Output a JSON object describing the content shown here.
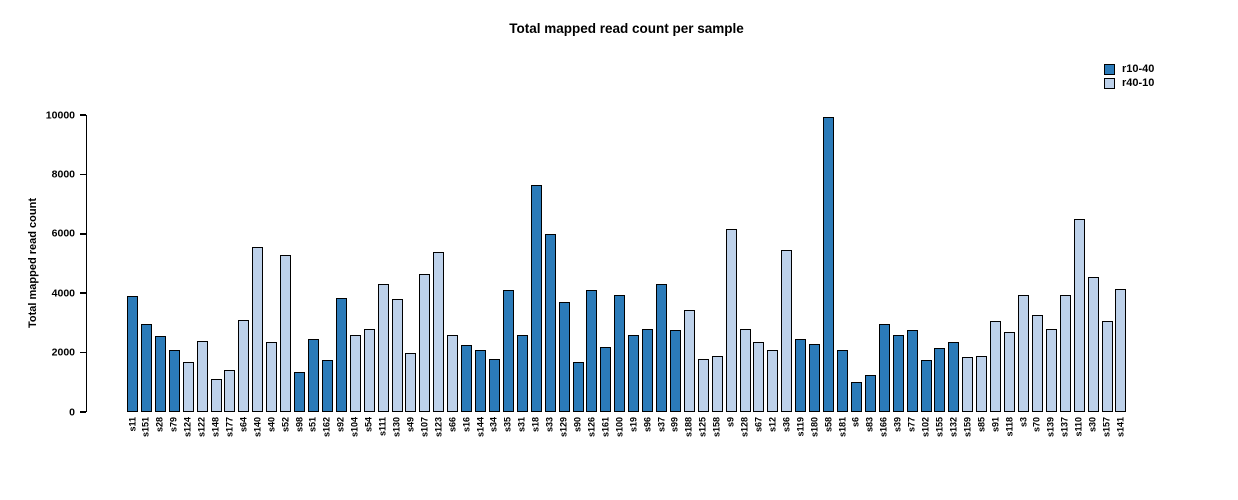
{
  "chart_data": {
    "type": "bar",
    "title": "Total mapped read count per sample",
    "xlabel": "",
    "ylabel": "Total mapped read count",
    "ylim": [
      0,
      10000
    ],
    "yticks": [
      0,
      2000,
      4000,
      6000,
      8000,
      10000
    ],
    "grid": false,
    "legend_position": "top-right",
    "legend": [
      {
        "label": "r10-40",
        "color": "#2b7bb9"
      },
      {
        "label": "r40-10",
        "color": "#bdd1ea"
      }
    ],
    "samples": [
      {
        "id": "s11",
        "value": 3900,
        "series": "r10-40"
      },
      {
        "id": "s151",
        "value": 2950,
        "series": "r10-40"
      },
      {
        "id": "s28",
        "value": 2550,
        "series": "r10-40"
      },
      {
        "id": "s79",
        "value": 2100,
        "series": "r10-40"
      },
      {
        "id": "s124",
        "value": 1700,
        "series": "r40-10"
      },
      {
        "id": "s122",
        "value": 2400,
        "series": "r40-10"
      },
      {
        "id": "s148",
        "value": 1100,
        "series": "r40-10"
      },
      {
        "id": "s177",
        "value": 1400,
        "series": "r40-10"
      },
      {
        "id": "s64",
        "value": 3100,
        "series": "r40-10"
      },
      {
        "id": "s140",
        "value": 5550,
        "series": "r40-10"
      },
      {
        "id": "s40",
        "value": 2350,
        "series": "r40-10"
      },
      {
        "id": "s52",
        "value": 5300,
        "series": "r40-10"
      },
      {
        "id": "s98",
        "value": 1350,
        "series": "r10-40"
      },
      {
        "id": "s51",
        "value": 2450,
        "series": "r10-40"
      },
      {
        "id": "s162",
        "value": 1750,
        "series": "r10-40"
      },
      {
        "id": "s92",
        "value": 3850,
        "series": "r10-40"
      },
      {
        "id": "s104",
        "value": 2600,
        "series": "r40-10"
      },
      {
        "id": "s54",
        "value": 2800,
        "series": "r40-10"
      },
      {
        "id": "s111",
        "value": 4300,
        "series": "r40-10"
      },
      {
        "id": "s130",
        "value": 3800,
        "series": "r40-10"
      },
      {
        "id": "s49",
        "value": 2000,
        "series": "r40-10"
      },
      {
        "id": "s107",
        "value": 4650,
        "series": "r40-10"
      },
      {
        "id": "s123",
        "value": 5400,
        "series": "r40-10"
      },
      {
        "id": "s66",
        "value": 2600,
        "series": "r40-10"
      },
      {
        "id": "s16",
        "value": 2250,
        "series": "r10-40"
      },
      {
        "id": "s144",
        "value": 2100,
        "series": "r10-40"
      },
      {
        "id": "s34",
        "value": 1800,
        "series": "r10-40"
      },
      {
        "id": "s35",
        "value": 4100,
        "series": "r10-40"
      },
      {
        "id": "s31",
        "value": 2600,
        "series": "r10-40"
      },
      {
        "id": "s18",
        "value": 7650,
        "series": "r10-40"
      },
      {
        "id": "s33",
        "value": 6000,
        "series": "r10-40"
      },
      {
        "id": "s129",
        "value": 3700,
        "series": "r10-40"
      },
      {
        "id": "s90",
        "value": 1700,
        "series": "r10-40"
      },
      {
        "id": "s126",
        "value": 4100,
        "series": "r10-40"
      },
      {
        "id": "s161",
        "value": 2200,
        "series": "r10-40"
      },
      {
        "id": "s100",
        "value": 3950,
        "series": "r10-40"
      },
      {
        "id": "s19",
        "value": 2600,
        "series": "r10-40"
      },
      {
        "id": "s96",
        "value": 2800,
        "series": "r10-40"
      },
      {
        "id": "s37",
        "value": 4300,
        "series": "r10-40"
      },
      {
        "id": "s99",
        "value": 2750,
        "series": "r10-40"
      },
      {
        "id": "s188",
        "value": 3450,
        "series": "r40-10"
      },
      {
        "id": "s125",
        "value": 1800,
        "series": "r40-10"
      },
      {
        "id": "s158",
        "value": 1900,
        "series": "r40-10"
      },
      {
        "id": "s9",
        "value": 6150,
        "series": "r40-10"
      },
      {
        "id": "s128",
        "value": 2800,
        "series": "r40-10"
      },
      {
        "id": "s67",
        "value": 2350,
        "series": "r40-10"
      },
      {
        "id": "s12",
        "value": 2100,
        "series": "r40-10"
      },
      {
        "id": "s36",
        "value": 5450,
        "series": "r40-10"
      },
      {
        "id": "s119",
        "value": 2450,
        "series": "r10-40"
      },
      {
        "id": "s180",
        "value": 2300,
        "series": "r10-40"
      },
      {
        "id": "s58",
        "value": 9950,
        "series": "r10-40"
      },
      {
        "id": "s181",
        "value": 2100,
        "series": "r10-40"
      },
      {
        "id": "s6",
        "value": 1000,
        "series": "r10-40"
      },
      {
        "id": "s83",
        "value": 1250,
        "series": "r10-40"
      },
      {
        "id": "s166",
        "value": 2950,
        "series": "r10-40"
      },
      {
        "id": "s39",
        "value": 2600,
        "series": "r10-40"
      },
      {
        "id": "s77",
        "value": 2750,
        "series": "r10-40"
      },
      {
        "id": "s102",
        "value": 1750,
        "series": "r10-40"
      },
      {
        "id": "s155",
        "value": 2150,
        "series": "r10-40"
      },
      {
        "id": "s132",
        "value": 2350,
        "series": "r10-40"
      },
      {
        "id": "s159",
        "value": 1850,
        "series": "r40-10"
      },
      {
        "id": "s85",
        "value": 1900,
        "series": "r40-10"
      },
      {
        "id": "s91",
        "value": 3050,
        "series": "r40-10"
      },
      {
        "id": "s118",
        "value": 2700,
        "series": "r40-10"
      },
      {
        "id": "s3",
        "value": 3950,
        "series": "r40-10"
      },
      {
        "id": "s70",
        "value": 3250,
        "series": "r40-10"
      },
      {
        "id": "s139",
        "value": 2800,
        "series": "r40-10"
      },
      {
        "id": "s137",
        "value": 3950,
        "series": "r40-10"
      },
      {
        "id": "s110",
        "value": 6500,
        "series": "r40-10"
      },
      {
        "id": "s30",
        "value": 4550,
        "series": "r40-10"
      },
      {
        "id": "s157",
        "value": 3050,
        "series": "r40-10"
      },
      {
        "id": "s141",
        "value": 4150,
        "series": "r40-10"
      }
    ]
  }
}
